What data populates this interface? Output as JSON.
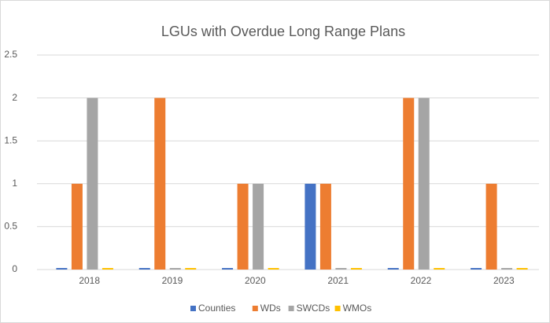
{
  "chart_data": {
    "type": "bar",
    "title": "LGUs with Overdue Long Range Plans",
    "categories": [
      "2018",
      "2019",
      "2020",
      "2021",
      "2022",
      "2023"
    ],
    "series": [
      {
        "name": "Counties",
        "color": "#4472c4",
        "values": [
          0,
          0,
          0,
          1,
          0,
          0
        ]
      },
      {
        "name": "WDs",
        "color": "#ed7d31",
        "values": [
          1,
          2,
          1,
          1,
          2,
          1
        ]
      },
      {
        "name": "SWCDs",
        "color": "#a5a5a5",
        "values": [
          2,
          0,
          1,
          0,
          2,
          0
        ]
      },
      {
        "name": "WMOs",
        "color": "#ffc000",
        "values": [
          0,
          0,
          0,
          0,
          0,
          0
        ]
      }
    ],
    "ylim": [
      0,
      2.5
    ],
    "yticks": [
      0,
      0.5,
      1,
      1.5,
      2,
      2.5
    ],
    "grid": true,
    "legend": "bottom"
  }
}
